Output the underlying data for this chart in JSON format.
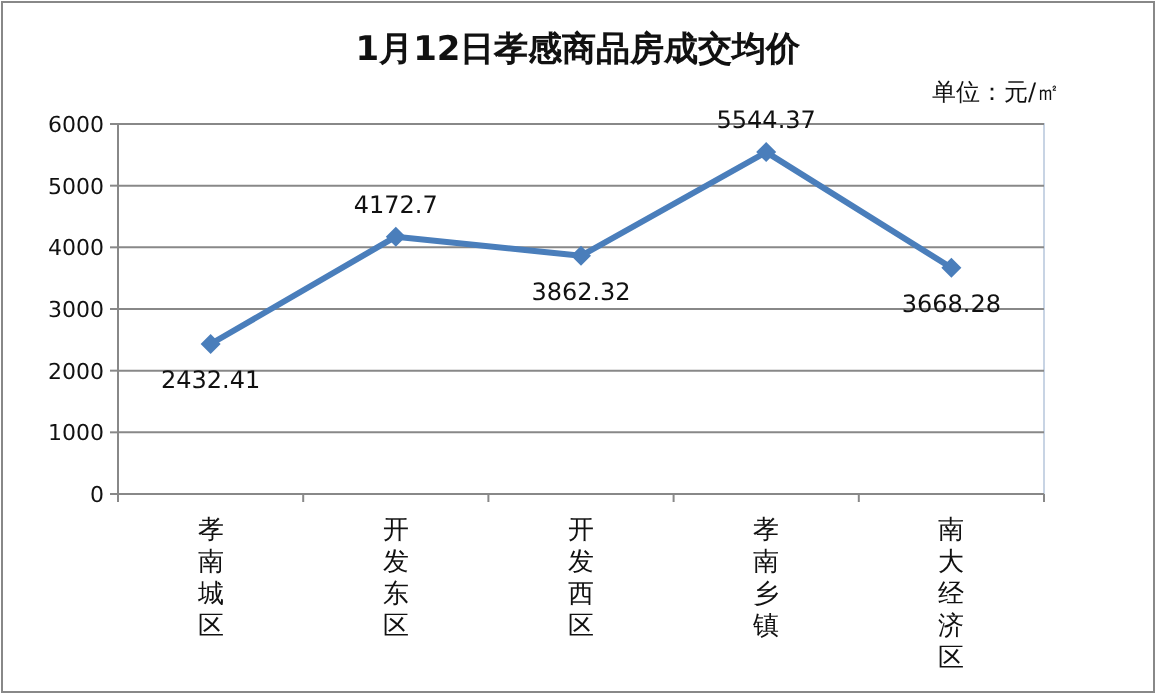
{
  "chart_data": {
    "type": "line",
    "title": "1月12日孝感商品房成交均价",
    "annotations": [
      "单位：元/㎡"
    ],
    "categories": [
      "孝南城区",
      "开发东区",
      "开发西区",
      "孝南乡镇",
      "南大经济区"
    ],
    "series": [
      {
        "color": "#4a7ebb",
        "values": [
          2432.41,
          4172.7,
          3862.32,
          5544.37,
          3668.28
        ]
      }
    ],
    "ylim": [
      0,
      6000
    ],
    "yticks": [
      0,
      1000,
      2000,
      3000,
      4000,
      5000,
      6000
    ],
    "grid": "y",
    "marker": "diamond",
    "line_style": "solid",
    "data_labels": true
  }
}
